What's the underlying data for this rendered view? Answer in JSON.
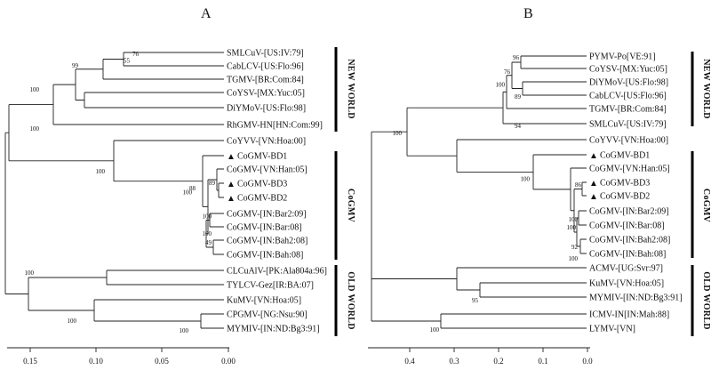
{
  "panels": {
    "A": {
      "label": "A",
      "leaves": [
        {
          "id": "a1",
          "name": "SMLCuV-[US:IV:79]"
        },
        {
          "id": "a2",
          "name": "CabLCV-[US:Flo:96]"
        },
        {
          "id": "a3",
          "name": "TGMV-[BR:Com:84]"
        },
        {
          "id": "a4",
          "name": "CoYSV-[MX:Yuc:05]"
        },
        {
          "id": "a5",
          "name": "DiYMoV-[US:Flo:98]"
        },
        {
          "id": "a6",
          "name": "RhGMV-HN[HN:Com:99]"
        },
        {
          "id": "a7",
          "name": "CoYVV-[VN:Hoa:00]"
        },
        {
          "id": "a8",
          "name": "CoGMV-BD1",
          "marked": true
        },
        {
          "id": "a9",
          "name": "CoGMV-[VN:Han:05]"
        },
        {
          "id": "a10",
          "name": "CoGMV-BD3",
          "marked": true
        },
        {
          "id": "a11",
          "name": "CoGMV-BD2",
          "marked": true
        },
        {
          "id": "a12",
          "name": "CoGMV-[IN:Bar2:09]"
        },
        {
          "id": "a13",
          "name": "CoGMV-[IN:Bar:08]"
        },
        {
          "id": "a14",
          "name": "CoGMV-[IN:Bah2:08]"
        },
        {
          "id": "a15",
          "name": "CoGMV-[IN:Bah:08]"
        },
        {
          "id": "a16",
          "name": "CLCuAlV-[PK:Ala804a:96]"
        },
        {
          "id": "a17",
          "name": "TYLCV-Gez[IR:BA:07]"
        },
        {
          "id": "a18",
          "name": "KuMV-[VN:Hoa:05]"
        },
        {
          "id": "a19",
          "name": "CPGMV-[NG:Nsu:90]"
        },
        {
          "id": "a20",
          "name": "MYMIV-[IN:ND:Bg3:91]"
        }
      ],
      "bootstrap": [
        "76",
        "55",
        "99",
        "100",
        "100",
        "100",
        "89",
        "88",
        "100",
        "100",
        "100",
        "49",
        "100",
        "100",
        "100"
      ],
      "groups": [
        "NEW WORLD",
        "CoGMV",
        "OLD WORLD"
      ],
      "axis_ticks": [
        "0.15",
        "0.10",
        "0.05",
        "0.00"
      ]
    },
    "B": {
      "label": "B",
      "leaves": [
        {
          "id": "b1",
          "name": "PYMV-Po[VE:91]"
        },
        {
          "id": "b2",
          "name": "CoYSV-[MX:Yuc:05]"
        },
        {
          "id": "b3",
          "name": "DiYMoV-[US:Flo:98]"
        },
        {
          "id": "b4",
          "name": "CabLCV-[US:Flo:96]"
        },
        {
          "id": "b5",
          "name": "TGMV-[BR:Com:84]"
        },
        {
          "id": "b6",
          "name": "SMLCuV-[US:IV:79]"
        },
        {
          "id": "b7",
          "name": "CoYVV-[VN:Hoa:00]"
        },
        {
          "id": "b8",
          "name": "CoGMV-BD1",
          "marked": true
        },
        {
          "id": "b9",
          "name": "CoGMV-[VN:Han:05]"
        },
        {
          "id": "b10",
          "name": "CoGMV-BD3",
          "marked": true
        },
        {
          "id": "b11",
          "name": "CoGMV-BD2",
          "marked": true
        },
        {
          "id": "b12",
          "name": "CoGMV-[IN:Bar2:09]"
        },
        {
          "id": "b13",
          "name": "CoGMV-[IN:Bar:08]"
        },
        {
          "id": "b14",
          "name": "CoGMV-[IN:Bah2:08]"
        },
        {
          "id": "b15",
          "name": "CoGMV-[IN:Bah:08]"
        },
        {
          "id": "b16",
          "name": "ACMV-[UG:Svr:97]"
        },
        {
          "id": "b17",
          "name": "KuMV-[VN:Hoa:05]"
        },
        {
          "id": "b18",
          "name": "MYMIV-[IN:ND:Bg3:91]"
        },
        {
          "id": "b19",
          "name": "ICMV-IN[IN:Mah:88]"
        },
        {
          "id": "b20",
          "name": "LYMV-[VN]"
        }
      ],
      "bootstrap": [
        "96",
        "76",
        "100",
        "89",
        "94",
        "100",
        "100",
        "86",
        "100",
        "100",
        "92",
        "100",
        "95",
        "100"
      ],
      "groups": [
        "NEW WORLD",
        "CoGMV",
        "OLD WORLD"
      ],
      "axis_ticks": [
        "0.4",
        "0.3",
        "0.2",
        "0.1",
        "0.0"
      ]
    }
  },
  "marker_glyph": "▲"
}
